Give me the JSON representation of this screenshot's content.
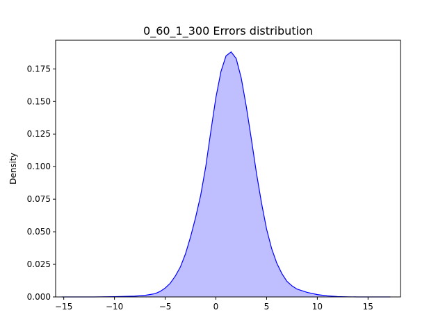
{
  "chart_data": {
    "type": "area",
    "title": "0_60_1_300 Errors distribution",
    "xlabel": "",
    "ylabel": "Density",
    "xlim": [
      -15.8,
      18.2
    ],
    "ylim": [
      0,
      0.197
    ],
    "xticks": [
      -15,
      -10,
      -5,
      0,
      5,
      10,
      15
    ],
    "xtick_labels": [
      "−15",
      "−10",
      "−5",
      "0",
      "5",
      "10",
      "15"
    ],
    "yticks": [
      0.0,
      0.025,
      0.05,
      0.075,
      0.1,
      0.125,
      0.15,
      0.175
    ],
    "ytick_labels": [
      "0.000",
      "0.025",
      "0.050",
      "0.075",
      "0.100",
      "0.125",
      "0.150",
      "0.175"
    ],
    "grid": false,
    "colors": {
      "line": "#0000ff",
      "fill": "#bfbfff"
    },
    "series": [
      {
        "x": [
          -15.2,
          -14,
          -12,
          -10,
          -8,
          -7,
          -6,
          -5.5,
          -5,
          -4.5,
          -4,
          -3.5,
          -3,
          -2.5,
          -2,
          -1.5,
          -1,
          -0.5,
          0,
          0.5,
          1,
          1.5,
          2,
          2.5,
          3,
          3.5,
          4,
          4.5,
          5,
          5.5,
          6,
          6.5,
          7,
          7.5,
          8,
          9,
          10,
          11,
          12,
          13,
          14,
          15,
          16,
          17.2
        ],
        "y": [
          0.0,
          0.0,
          0.0,
          0.0002,
          0.0006,
          0.0012,
          0.0025,
          0.0042,
          0.0068,
          0.0105,
          0.016,
          0.023,
          0.033,
          0.046,
          0.061,
          0.078,
          0.1,
          0.127,
          0.153,
          0.173,
          0.185,
          0.188,
          0.183,
          0.168,
          0.146,
          0.121,
          0.095,
          0.072,
          0.052,
          0.037,
          0.026,
          0.018,
          0.012,
          0.0085,
          0.006,
          0.0035,
          0.0018,
          0.0008,
          0.0003,
          0.0001,
          0.0,
          0.0,
          0.0,
          0.0
        ]
      }
    ]
  }
}
